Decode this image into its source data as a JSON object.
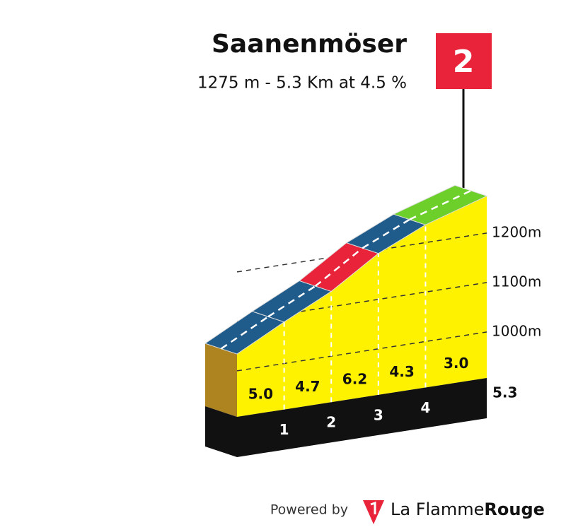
{
  "chart_data": {
    "type": "climb_profile",
    "title": "Saanenmöser",
    "subtitle": "1275 m - 5.3 Km at 4.5 %",
    "category": "2",
    "values": [
      5.0,
      4.7,
      6.2,
      4.3,
      3.0
    ],
    "value_labels": [
      "5.0",
      "4.7",
      "6.2",
      "4.3",
      "3.0"
    ],
    "colors": [
      "#1f5c8c",
      "#1f5c8c",
      "#e8233a",
      "#1f5c8c",
      "#6ccf2a"
    ],
    "start_elevation": 1034,
    "xlim": [
      0,
      5.3
    ],
    "xticks": [
      1,
      2,
      3,
      4,
      5.3
    ],
    "ylim": [
      907,
      1300
    ],
    "yticks": [
      {
        "value": 1000,
        "label": "1000m"
      },
      {
        "value": 1100,
        "label": "1100m"
      },
      {
        "value": 1200,
        "label": "1200m"
      }
    ],
    "grid": true
  },
  "footer": {
    "powered": "Powered by",
    "brand": "La Flamme",
    "brand_bold": "Rouge"
  }
}
